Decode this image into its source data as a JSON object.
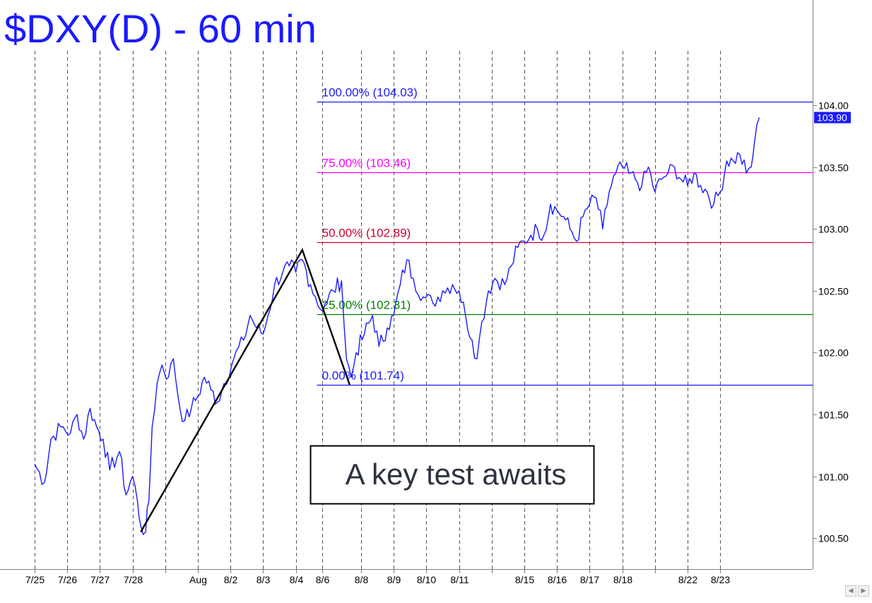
{
  "chart_data": {
    "type": "line",
    "title": "$DXY(D) - 60 min",
    "title_color": "#1a1aff",
    "series_color": "#1a1aff",
    "ylim": [
      100.25,
      104.85
    ],
    "y_ticks": [
      100.5,
      101.0,
      101.5,
      102.0,
      102.5,
      103.0,
      103.5,
      104.0
    ],
    "y_tick_labels": [
      "100.50",
      "101.00",
      "101.50",
      "102.00",
      "102.50",
      "103.00",
      "103.50",
      "104.00"
    ],
    "last_price": 103.9,
    "last_price_label": "103.90",
    "grid": "vertical dashed",
    "x_ticks": [
      {
        "t": 1.0,
        "label": "7/25"
      },
      {
        "t": 2.0,
        "label": "7/26"
      },
      {
        "t": 3.0,
        "label": "7/27"
      },
      {
        "t": 4.0,
        "label": "7/28"
      },
      {
        "t": 5.0,
        "label": ""
      },
      {
        "t": 6.0,
        "label": "Aug"
      },
      {
        "t": 7.0,
        "label": "8/2"
      },
      {
        "t": 8.0,
        "label": "8/3"
      },
      {
        "t": 9.0,
        "label": "8/4"
      },
      {
        "t": 9.8,
        "label": "8/6"
      },
      {
        "t": 11.0,
        "label": "8/8"
      },
      {
        "t": 12.0,
        "label": "8/9"
      },
      {
        "t": 13.0,
        "label": "8/10"
      },
      {
        "t": 14.0,
        "label": "8/11"
      },
      {
        "t": 15.0,
        "label": ""
      },
      {
        "t": 16.0,
        "label": "8/15"
      },
      {
        "t": 17.0,
        "label": "8/16"
      },
      {
        "t": 18.0,
        "label": "8/17"
      },
      {
        "t": 19.0,
        "label": "8/18"
      },
      {
        "t": 20.0,
        "label": ""
      },
      {
        "t": 21.0,
        "label": "8/22"
      },
      {
        "t": 22.0,
        "label": "8/23"
      }
    ],
    "xlim": [
      0.0,
      24.35
    ],
    "price_path": [
      [
        0.0,
        101.1
      ],
      [
        0.3,
        100.95
      ],
      [
        0.5,
        101.3
      ],
      [
        0.8,
        101.4
      ],
      [
        1.1,
        101.35
      ],
      [
        1.3,
        101.5
      ],
      [
        1.5,
        101.3
      ],
      [
        1.7,
        101.55
      ],
      [
        1.9,
        101.4
      ],
      [
        2.1,
        101.3
      ],
      [
        2.3,
        101.05
      ],
      [
        2.6,
        101.2
      ],
      [
        2.8,
        100.85
      ],
      [
        3.0,
        101.0
      ],
      [
        3.15,
        100.8
      ],
      [
        3.25,
        100.6
      ],
      [
        3.4,
        100.55
      ],
      [
        3.5,
        100.8
      ],
      [
        3.6,
        101.4
      ],
      [
        3.75,
        101.75
      ],
      [
        3.9,
        101.9
      ],
      [
        4.1,
        101.8
      ],
      [
        4.25,
        101.95
      ],
      [
        4.45,
        101.55
      ],
      [
        4.6,
        101.45
      ],
      [
        4.8,
        101.55
      ],
      [
        5.0,
        101.65
      ],
      [
        5.2,
        101.8
      ],
      [
        5.4,
        101.7
      ],
      [
        5.6,
        101.6
      ],
      [
        5.8,
        101.75
      ],
      [
        6.1,
        101.95
      ],
      [
        6.4,
        102.1
      ],
      [
        6.6,
        102.3
      ],
      [
        6.8,
        102.2
      ],
      [
        7.0,
        102.15
      ],
      [
        7.15,
        102.3
      ],
      [
        7.35,
        102.55
      ],
      [
        7.6,
        102.65
      ],
      [
        7.8,
        102.7
      ],
      [
        8.0,
        102.65
      ],
      [
        8.2,
        102.75
      ],
      [
        8.45,
        102.55
      ],
      [
        8.6,
        102.45
      ],
      [
        8.75,
        102.35
      ],
      [
        8.9,
        102.4
      ],
      [
        9.15,
        102.5
      ],
      [
        9.4,
        102.58
      ],
      [
        9.55,
        101.95
      ],
      [
        9.7,
        101.8
      ],
      [
        9.85,
        102.0
      ],
      [
        10.1,
        102.15
      ],
      [
        10.35,
        102.3
      ],
      [
        10.55,
        102.05
      ],
      [
        10.8,
        102.2
      ],
      [
        11.0,
        102.3
      ],
      [
        11.2,
        102.55
      ],
      [
        11.4,
        102.75
      ],
      [
        11.6,
        102.6
      ],
      [
        11.9,
        102.45
      ],
      [
        12.2,
        102.4
      ],
      [
        12.5,
        102.5
      ],
      [
        12.8,
        102.55
      ],
      [
        13.0,
        102.5
      ],
      [
        13.2,
        102.3
      ],
      [
        13.4,
        102.1
      ],
      [
        13.55,
        101.95
      ],
      [
        13.7,
        102.25
      ],
      [
        13.9,
        102.5
      ],
      [
        14.1,
        102.6
      ],
      [
        14.4,
        102.55
      ],
      [
        14.6,
        102.7
      ],
      [
        14.8,
        102.85
      ],
      [
        15.0,
        102.9
      ],
      [
        15.2,
        102.95
      ],
      [
        15.4,
        103.0
      ],
      [
        15.6,
        102.95
      ],
      [
        15.8,
        103.2
      ],
      [
        16.0,
        103.15
      ],
      [
        16.2,
        103.1
      ],
      [
        16.4,
        103.0
      ],
      [
        16.6,
        102.9
      ],
      [
        16.8,
        103.1
      ],
      [
        17.0,
        103.2
      ],
      [
        17.2,
        103.25
      ],
      [
        17.4,
        103.0
      ],
      [
        17.6,
        103.3
      ],
      [
        17.8,
        103.45
      ],
      [
        18.0,
        103.5
      ],
      [
        18.2,
        103.45
      ],
      [
        18.4,
        103.4
      ],
      [
        18.6,
        103.35
      ],
      [
        18.8,
        103.5
      ],
      [
        19.0,
        103.3
      ],
      [
        19.2,
        103.4
      ],
      [
        19.4,
        103.45
      ],
      [
        19.6,
        103.5
      ],
      [
        19.8,
        103.4
      ],
      [
        20.0,
        103.35
      ],
      [
        20.2,
        103.45
      ],
      [
        20.4,
        103.35
      ],
      [
        20.6,
        103.3
      ],
      [
        20.8,
        103.2
      ],
      [
        21.0,
        103.3
      ],
      [
        21.2,
        103.55
      ],
      [
        21.4,
        103.55
      ],
      [
        21.6,
        103.6
      ],
      [
        21.8,
        103.45
      ],
      [
        21.95,
        103.5
      ],
      [
        22.05,
        103.7
      ],
      [
        22.2,
        103.9
      ]
    ],
    "abc_line": [
      [
        3.25,
        100.55
      ],
      [
        8.2,
        102.83
      ],
      [
        9.65,
        101.74
      ]
    ],
    "fib_levels": [
      {
        "pct": "100.00%",
        "value": 104.03,
        "label": "100.00% (104.03)",
        "color": "#1a1aff"
      },
      {
        "pct": "75.00%",
        "value": 103.46,
        "label": "75.00% (103.46)",
        "color": "#ff00ff"
      },
      {
        "pct": "50.00%",
        "value": 102.89,
        "label": "50.00% (102.89)",
        "color": "#cc0033"
      },
      {
        "pct": "25.00%",
        "value": 102.31,
        "label": "25.00% (102.31)",
        "color": "#008000"
      },
      {
        "pct": "0.00%",
        "value": 101.74,
        "label": "0.00% (101.74)",
        "color": "#1a1aff"
      }
    ],
    "fib_start_t": 9.65,
    "annotation": "A key test awaits"
  },
  "scrollbar": {
    "left_arrow": "◀",
    "right_arrow": "▶"
  }
}
